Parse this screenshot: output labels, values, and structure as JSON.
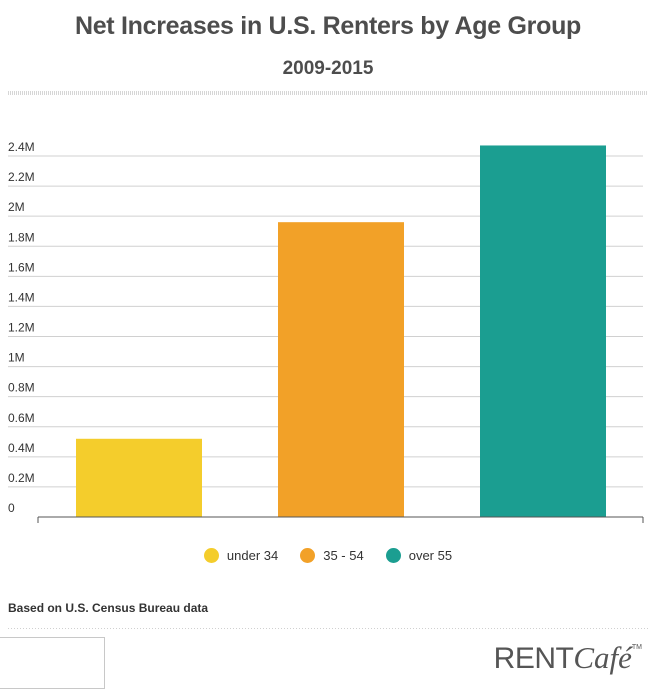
{
  "chart_data": {
    "type": "bar",
    "title": "Net Increases in U.S. Renters by Age Group",
    "subtitle": "2009-2015",
    "categories": [
      "under 34",
      "35 - 54",
      "over 55"
    ],
    "values": [
      0.52,
      1.96,
      2.47
    ],
    "colors": [
      "#f4cd2c",
      "#f2a128",
      "#1b9e91"
    ],
    "ylim": [
      0,
      2.4
    ],
    "yticks": [
      {
        "value": 0,
        "label": "0"
      },
      {
        "value": 0.2,
        "label": "0.2M"
      },
      {
        "value": 0.4,
        "label": "0.4M"
      },
      {
        "value": 0.6,
        "label": "0.6M"
      },
      {
        "value": 0.8,
        "label": "0.8M"
      },
      {
        "value": 1.0,
        "label": "1M"
      },
      {
        "value": 1.2,
        "label": "1.2M"
      },
      {
        "value": 1.4,
        "label": "1.4M"
      },
      {
        "value": 1.6,
        "label": "1.6M"
      },
      {
        "value": 1.8,
        "label": "1.8M"
      },
      {
        "value": 2.0,
        "label": "2M"
      },
      {
        "value": 2.2,
        "label": "2.2M"
      },
      {
        "value": 2.4,
        "label": "2.4M"
      }
    ],
    "xlabel": "",
    "ylabel": "",
    "grid": true,
    "legend_position": "bottom"
  },
  "source_note": "Based on U.S. Census Bureau data",
  "logo": {
    "part1": "RENT",
    "part2": "Café",
    "tm": "TM"
  }
}
